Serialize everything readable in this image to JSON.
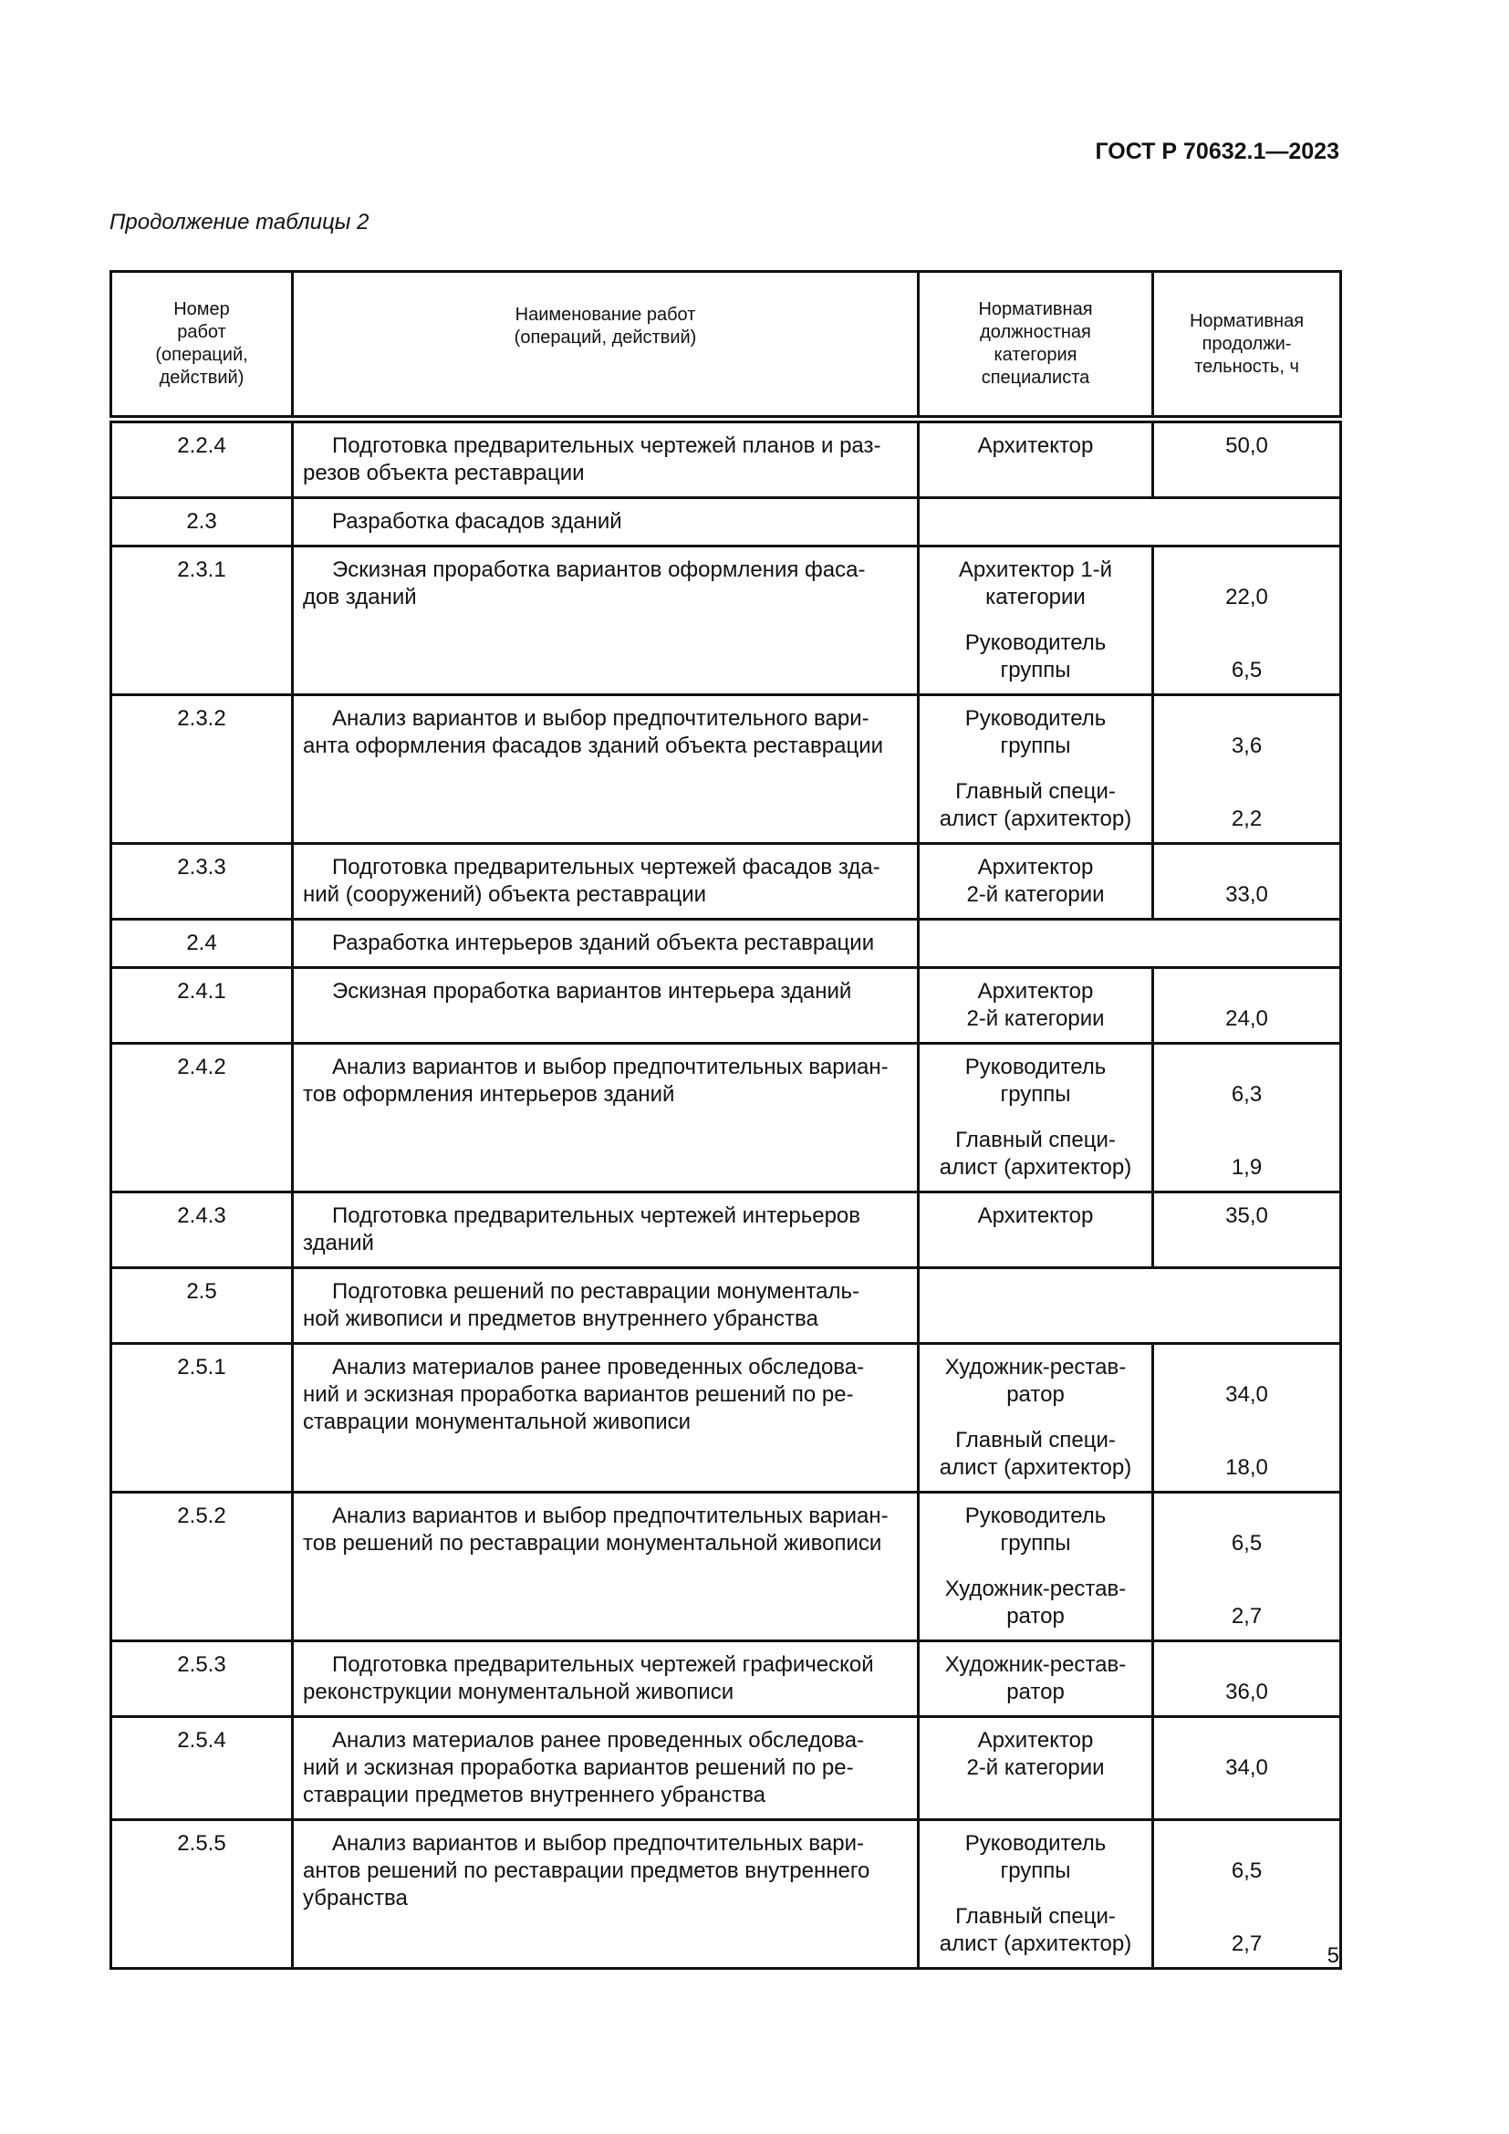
{
  "header": {
    "doc_code": "ГОСТ Р 70632.1—2023",
    "continuation": "Продолжение таблицы 2"
  },
  "table": {
    "columns": [
      "Номер\nработ\n(операций,\nдействий)",
      "Наименование работ\n(операций, действий)",
      "Нормативная\nдолжностная\nкатегория\nспециалиста",
      "Нормативная\nпродолжи-\nтельность, ч"
    ],
    "rows": [
      {
        "num": "2.2.4",
        "desc": "Подготовка предварительных чертежей планов и раз-\nрезов объекта реставрации",
        "items": [
          {
            "spec": "Архитектор",
            "value": "50,0"
          }
        ]
      },
      {
        "num": "2.3",
        "desc": "Разработка фасадов зданий",
        "section": true
      },
      {
        "num": "2.3.1",
        "desc": "Эскизная проработка вариантов оформления фаса-\nдов зданий",
        "items": [
          {
            "spec": "Архитектор 1-й\nкатегории",
            "value": "22,0"
          },
          {
            "spec": "Руководитель\nгруппы",
            "value": "6,5"
          }
        ]
      },
      {
        "num": "2.3.2",
        "desc": "Анализ вариантов и выбор предпочтительного вари-\nанта оформления фасадов зданий объекта реставрации",
        "items": [
          {
            "spec": "Руководитель\nгруппы",
            "value": "3,6"
          },
          {
            "spec": "Главный специ-\nалист (архитектор)",
            "value": "2,2"
          }
        ]
      },
      {
        "num": "2.3.3",
        "desc": "Подготовка предварительных чертежей фасадов зда-\nний (сооружений) объекта реставрации",
        "items": [
          {
            "spec": "Архитектор\n2-й категории",
            "value": "33,0"
          }
        ]
      },
      {
        "num": "2.4",
        "desc": "Разработка интерьеров зданий объекта реставрации",
        "section": true
      },
      {
        "num": "2.4.1",
        "desc": "Эскизная проработка вариантов интерьера зданий",
        "items": [
          {
            "spec": "Архитектор\n2-й категории",
            "value": "24,0"
          }
        ]
      },
      {
        "num": "2.4.2",
        "desc": "Анализ вариантов и выбор предпочтительных вариан-\nтов оформления интерьеров зданий",
        "items": [
          {
            "spec": "Руководитель\nгруппы",
            "value": "6,3"
          },
          {
            "spec": "Главный специ-\nалист (архитектор)",
            "value": "1,9"
          }
        ]
      },
      {
        "num": "2.4.3",
        "desc": "Подготовка предварительных чертежей интерьеров\nзданий",
        "items": [
          {
            "spec": "Архитектор",
            "value": "35,0"
          }
        ]
      },
      {
        "num": "2.5",
        "desc": "Подготовка решений по реставрации монументаль-\nной живописи и предметов внутреннего убранства",
        "section": true
      },
      {
        "num": "2.5.1",
        "desc": "Анализ материалов ранее проведенных обследова-\nний и эскизная проработка вариантов решений по ре-\nставрации монументальной живописи",
        "items": [
          {
            "spec": "Художник-рестав-\nратор",
            "value": "34,0"
          },
          {
            "spec": "Главный специ-\nалист (архитектор)",
            "value": "18,0"
          }
        ]
      },
      {
        "num": "2.5.2",
        "desc": "Анализ вариантов и выбор предпочтительных вариан-\nтов решений по реставрации монументальной живописи",
        "items": [
          {
            "spec": "Руководитель\nгруппы",
            "value": "6,5"
          },
          {
            "spec": "Художник-рестав-\nратор",
            "value": "2,7"
          }
        ]
      },
      {
        "num": "2.5.3",
        "desc": "Подготовка предварительных чертежей графической\nреконструкции монументальной живописи",
        "items": [
          {
            "spec": "Художник-рестав-\nратор",
            "value": "36,0"
          }
        ]
      },
      {
        "num": "2.5.4",
        "desc": "Анализ материалов ранее проведенных обследова-\nний и эскизная проработка вариантов решений по ре-\nставрации предметов внутреннего убранства",
        "items": [
          {
            "spec": "Архитектор\n2-й категории",
            "value": "34,0"
          }
        ]
      },
      {
        "num": "2.5.5",
        "desc": "Анализ вариантов и выбор предпочтительных вари-\nантов решений по реставрации предметов внутреннего\nубранства",
        "items": [
          {
            "spec": "Руководитель\nгруппы",
            "value": "6,5"
          },
          {
            "spec": "Главный специ-\nалист (архитектор)",
            "value": "2,7"
          }
        ]
      }
    ]
  },
  "footer": {
    "page_number": "5"
  }
}
